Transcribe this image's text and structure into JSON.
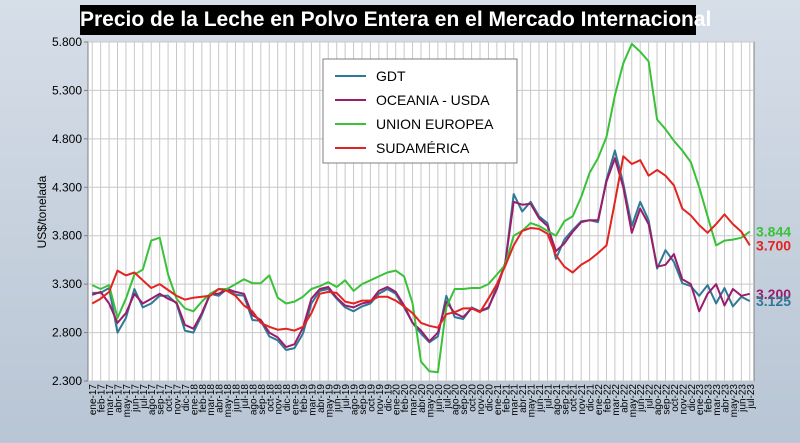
{
  "chart_data": {
    "type": "line",
    "title": "Precio de la Leche en Polvo Entera en el Mercado Internacional",
    "ylabel": "US$/tonelada",
    "xlabel": "",
    "ylim": [
      2300,
      5800
    ],
    "y_ticks": [
      "2.300",
      "2.800",
      "3.300",
      "3.800",
      "4.300",
      "4.800",
      "5.300",
      "5.800"
    ],
    "grid": true,
    "legend_position": "top-center",
    "categories": [
      "ene-17",
      "feb-17",
      "mar-17",
      "abr-17",
      "may-17",
      "jun-17",
      "jul-17",
      "ago-17",
      "sep-17",
      "oct-17",
      "nov-17",
      "dic-17",
      "ene-18",
      "feb-18",
      "mar-18",
      "abr-18",
      "may-18",
      "jun-18",
      "jul-18",
      "ago-18",
      "sep-18",
      "oct-18",
      "nov-18",
      "dic-18",
      "ene-19",
      "feb-19",
      "mar-19",
      "abr-19",
      "may-19",
      "jun-19",
      "jul-19",
      "ago-19",
      "sep-19",
      "oct-19",
      "nov-19",
      "dic-19",
      "ene-20",
      "feb-20",
      "mar-20",
      "abr-20",
      "may-20",
      "jun-20",
      "jul-20",
      "ago-20",
      "sep-20",
      "oct-20",
      "nov-20",
      "dic-20",
      "ene-21",
      "feb-21",
      "mar-21",
      "abr-21",
      "may-21",
      "jun-21",
      "jul-21",
      "ago-21",
      "sep-21",
      "oct-21",
      "nov-21",
      "dic-21",
      "ene-22",
      "feb-22",
      "mar-22",
      "abr-22",
      "may-22",
      "jun-22",
      "jul-22",
      "ago-22",
      "sep-22",
      "oct-22",
      "nov-22",
      "dic-22",
      "ene-23",
      "feb-23",
      "mar-23",
      "abr-23",
      "may-23",
      "jun-23",
      "jul-23"
    ],
    "series": [
      {
        "name": "GDT",
        "color": "#2e7a96",
        "end_label": "3.125",
        "values": [
          3210,
          3210,
          3260,
          2800,
          2950,
          3250,
          3060,
          3100,
          3180,
          3180,
          3100,
          2820,
          2800,
          2980,
          3200,
          3180,
          3250,
          3190,
          3180,
          2930,
          2920,
          2760,
          2720,
          2620,
          2640,
          2790,
          3100,
          3230,
          3250,
          3150,
          3060,
          3020,
          3070,
          3100,
          3200,
          3250,
          3200,
          3060,
          2900,
          2790,
          2700,
          2760,
          3180,
          2960,
          2940,
          3060,
          3020,
          3050,
          3280,
          3520,
          4230,
          4050,
          4150,
          4000,
          3930,
          3560,
          3760,
          3860,
          3950,
          3960,
          3940,
          4380,
          4680,
          4340,
          3900,
          4150,
          3960,
          3460,
          3650,
          3530,
          3310,
          3280,
          3180,
          3290,
          3100,
          3260,
          3070,
          3170,
          3125
        ]
      },
      {
        "name": "OCEANIA - USDA",
        "color": "#9b1c6c",
        "end_label": "3.200",
        "values": [
          3190,
          3220,
          3100,
          2900,
          3000,
          3200,
          3100,
          3150,
          3200,
          3150,
          3110,
          2880,
          2840,
          3000,
          3200,
          3200,
          3250,
          3220,
          3200,
          2980,
          2930,
          2800,
          2750,
          2650,
          2680,
          2850,
          3150,
          3250,
          3270,
          3160,
          3080,
          3060,
          3100,
          3120,
          3230,
          3270,
          3220,
          3080,
          2900,
          2820,
          2710,
          2800,
          3120,
          3000,
          2960,
          3050,
          3020,
          3060,
          3250,
          3520,
          4150,
          4120,
          4130,
          3980,
          3900,
          3640,
          3720,
          3840,
          3940,
          3960,
          3960,
          4360,
          4600,
          4300,
          3830,
          4080,
          3920,
          3480,
          3500,
          3610,
          3350,
          3300,
          3020,
          3200,
          3300,
          3080,
          3250,
          3180,
          3200
        ]
      },
      {
        "name": "UNION EUROPEA",
        "color": "#39c239",
        "end_label": "3.844",
        "values": [
          3290,
          3250,
          3290,
          2950,
          3150,
          3400,
          3450,
          3750,
          3780,
          3400,
          3150,
          3050,
          3020,
          3120,
          3200,
          3250,
          3250,
          3300,
          3350,
          3310,
          3310,
          3390,
          3160,
          3100,
          3120,
          3170,
          3250,
          3280,
          3320,
          3270,
          3340,
          3230,
          3300,
          3340,
          3380,
          3420,
          3440,
          3380,
          3100,
          2500,
          2400,
          2390,
          3060,
          3250,
          3250,
          3260,
          3260,
          3300,
          3400,
          3500,
          3800,
          3850,
          3930,
          3900,
          3850,
          3800,
          3950,
          4000,
          4200,
          4450,
          4600,
          4820,
          5250,
          5580,
          5780,
          5700,
          5600,
          5000,
          4900,
          4780,
          4680,
          4560,
          4300,
          4000,
          3700,
          3750,
          3760,
          3780,
          3844
        ]
      },
      {
        "name": "SUDAMÉRICA",
        "color": "#e3231f",
        "end_label": "3.700",
        "values": [
          3100,
          3150,
          3220,
          3440,
          3390,
          3420,
          3340,
          3260,
          3300,
          3240,
          3180,
          3140,
          3160,
          3170,
          3180,
          3250,
          3230,
          3180,
          3080,
          3020,
          2900,
          2860,
          2830,
          2840,
          2820,
          2860,
          3000,
          3200,
          3220,
          3210,
          3120,
          3100,
          3130,
          3130,
          3170,
          3170,
          3130,
          3070,
          3000,
          2900,
          2870,
          2850,
          2990,
          3010,
          3050,
          3050,
          3010,
          3150,
          3300,
          3490,
          3700,
          3850,
          3880,
          3870,
          3820,
          3600,
          3480,
          3420,
          3500,
          3550,
          3620,
          3700,
          4150,
          4620,
          4540,
          4580,
          4420,
          4480,
          4420,
          4320,
          4080,
          4010,
          3910,
          3830,
          3920,
          4020,
          3920,
          3840,
          3700
        ]
      }
    ]
  }
}
